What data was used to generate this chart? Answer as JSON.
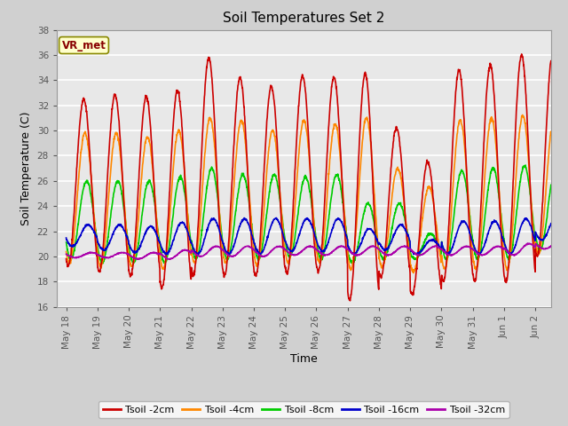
{
  "title": "Soil Temperatures Set 2",
  "xlabel": "Time",
  "ylabel": "Soil Temperature (C)",
  "ylim": [
    16,
    38
  ],
  "xlim_days": [
    -0.3,
    15.5
  ],
  "annotation": "VR_met",
  "fig_facecolor": "#d0d0d0",
  "plot_bg_color": "#e8e8e8",
  "grid_color": "white",
  "series": {
    "Tsoil -2cm": {
      "color": "#cc0000",
      "lw": 1.2
    },
    "Tsoil -4cm": {
      "color": "#ff8800",
      "lw": 1.2
    },
    "Tsoil -8cm": {
      "color": "#00cc00",
      "lw": 1.2
    },
    "Tsoil -16cm": {
      "color": "#0000cc",
      "lw": 1.2
    },
    "Tsoil -32cm": {
      "color": "#aa00aa",
      "lw": 1.2
    }
  },
  "x_tick_labels": [
    "May 18",
    "May 19",
    "May 20",
    "May 21",
    "May 22",
    "May 23",
    "May 24",
    "May 25",
    "May 26",
    "May 27",
    "May 28",
    "May 29",
    "May 30",
    "May 31",
    "Jun 1",
    "Jun 2"
  ],
  "x_tick_positions": [
    0,
    1,
    2,
    3,
    4,
    5,
    6,
    7,
    8,
    9,
    10,
    11,
    12,
    13,
    14,
    15
  ],
  "y_ticks": [
    16,
    18,
    20,
    22,
    24,
    26,
    28,
    30,
    32,
    34,
    36,
    38
  ],
  "title_fontsize": 11,
  "label_fontsize": 9,
  "tick_fontsize": 7.5,
  "legend_fontsize": 8
}
